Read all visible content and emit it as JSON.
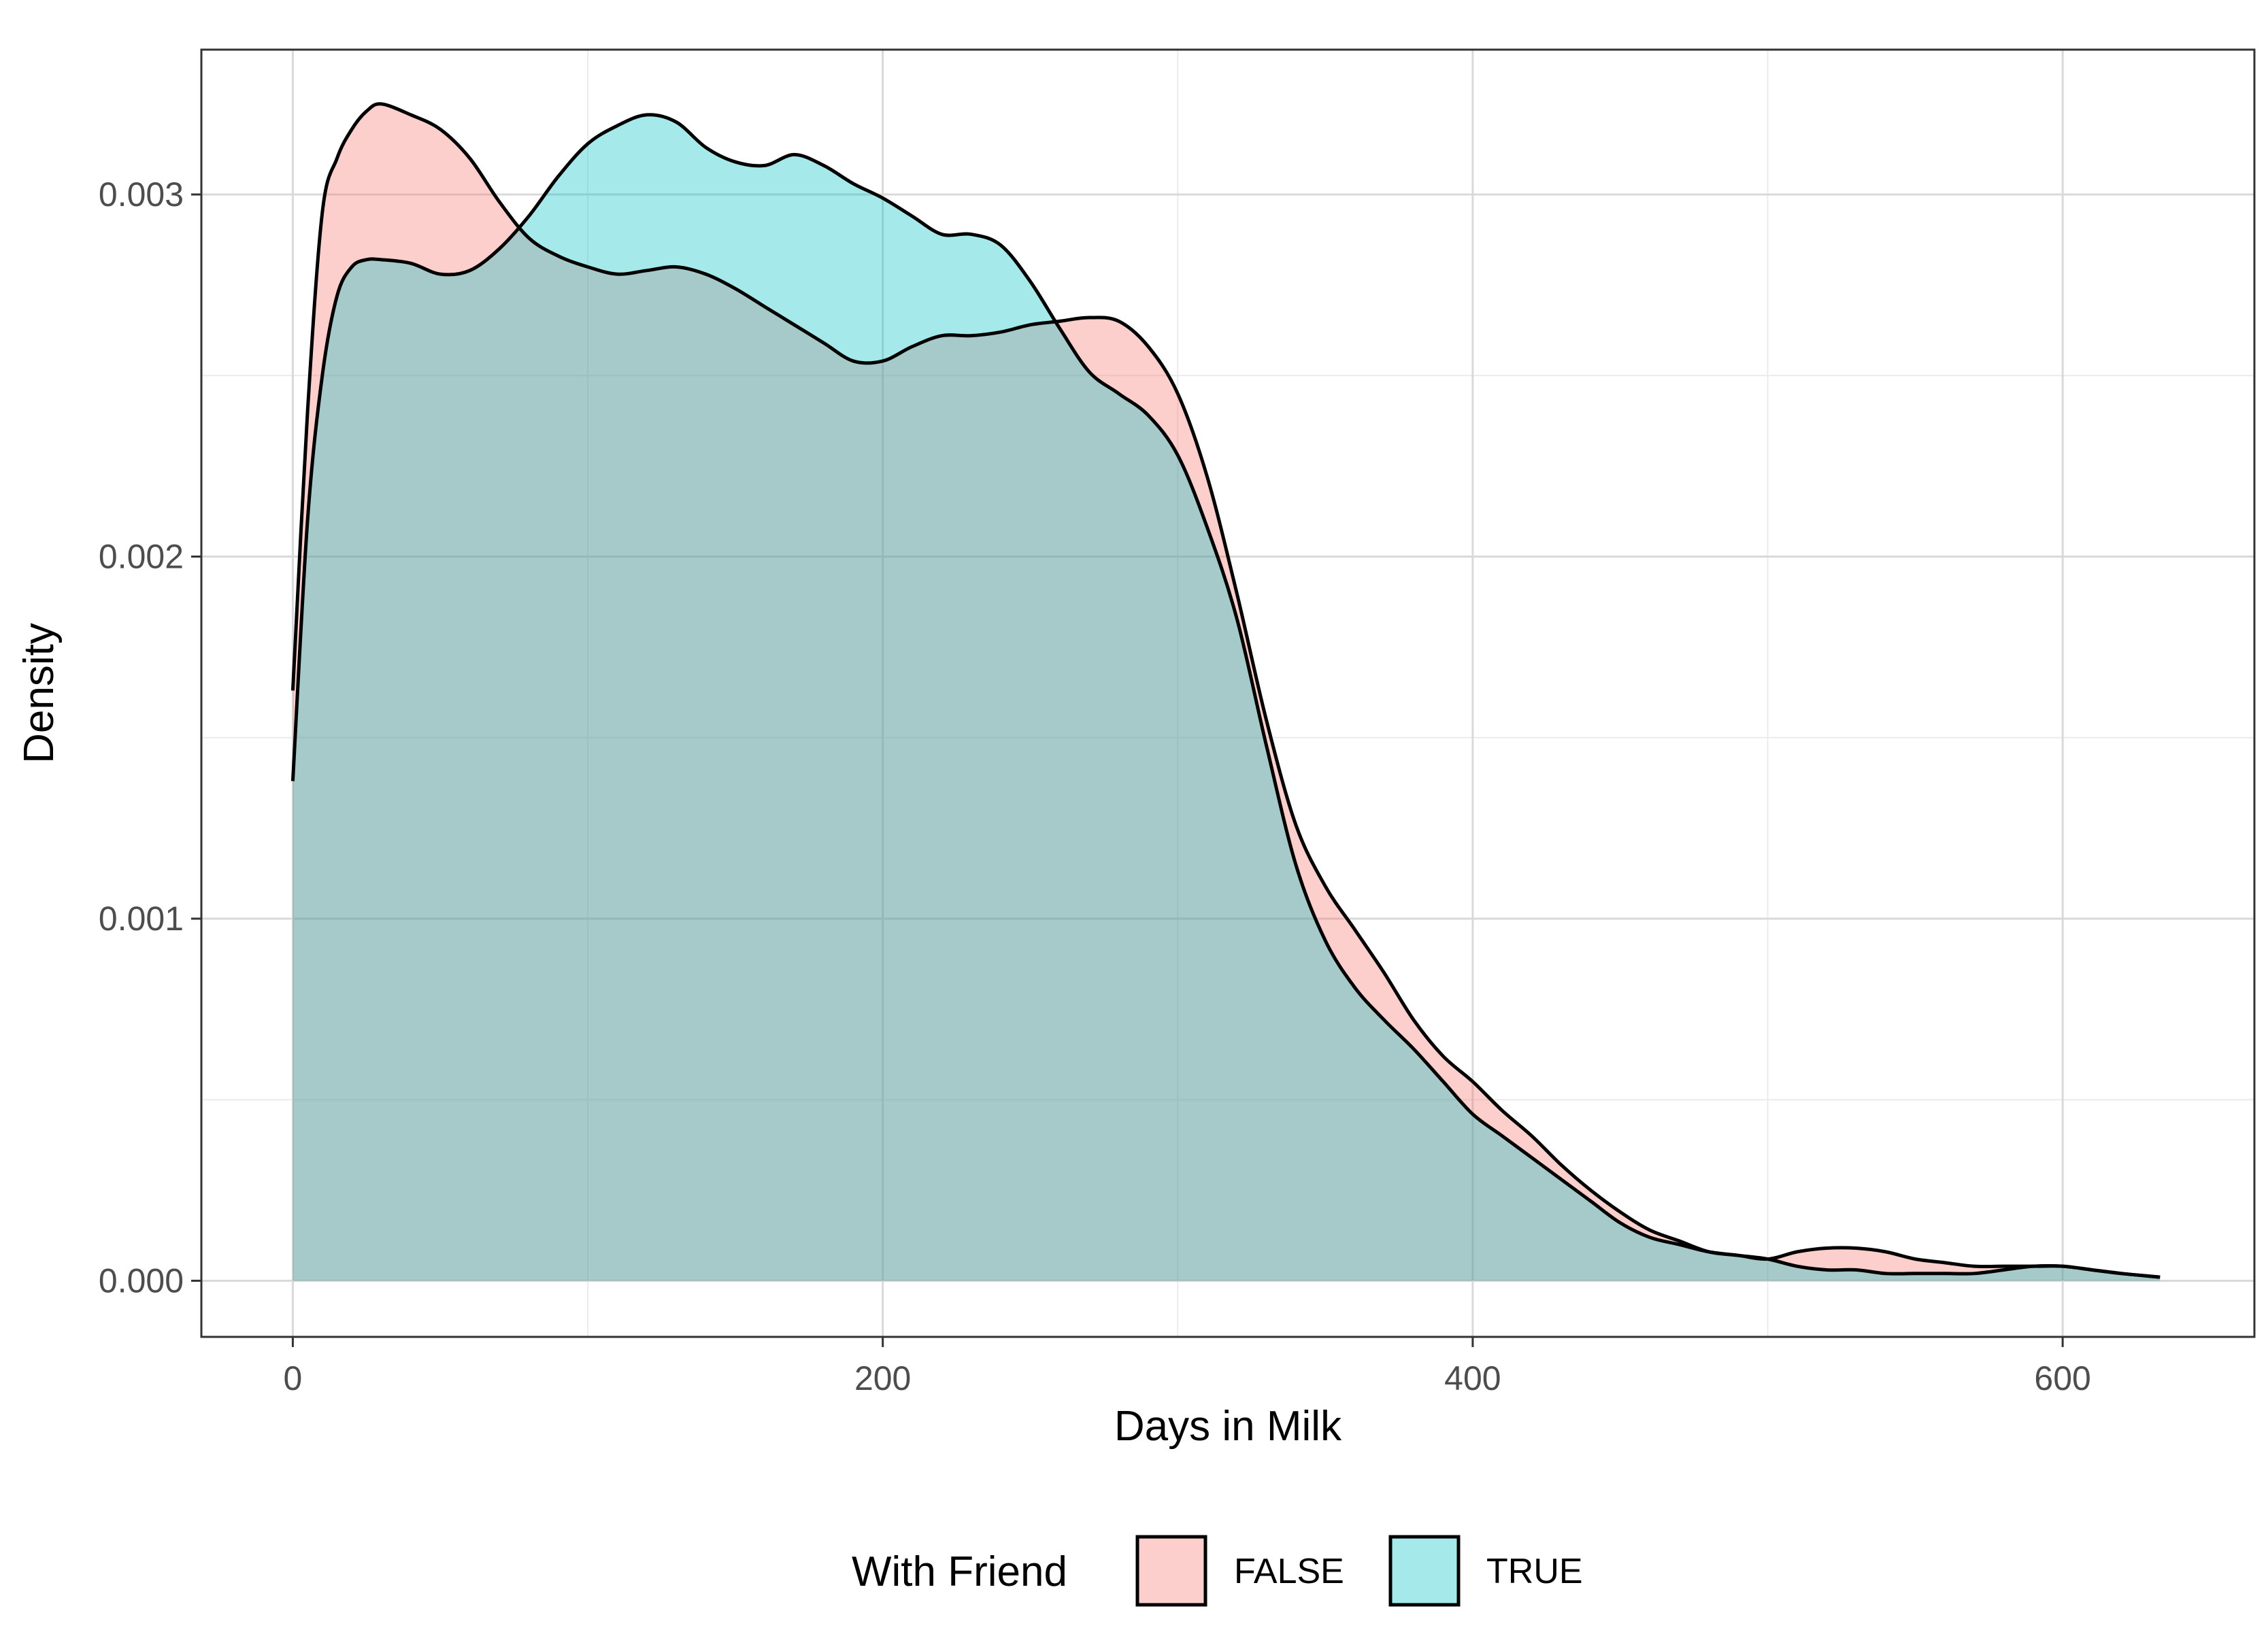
{
  "chart_data": {
    "type": "area",
    "subtype": "density",
    "title": "",
    "xlabel": "Days in Milk",
    "ylabel": "Density",
    "xlim": [
      -31,
      665
    ],
    "ylim": [
      -0.000155,
      0.0034
    ],
    "x_ticks": [
      0,
      200,
      400,
      600
    ],
    "x_tick_labels": [
      "0",
      "200",
      "400",
      "600"
    ],
    "y_ticks": [
      0,
      0.001,
      0.002,
      0.003
    ],
    "y_tick_labels": [
      "0.000",
      "0.001",
      "0.002",
      "0.003"
    ],
    "x_minor_ticks": [
      100,
      300,
      500
    ],
    "y_minor_ticks": [
      0.0005,
      0.0015,
      0.0025
    ],
    "grid": true,
    "legend": {
      "title": "With Friend",
      "position": "bottom"
    },
    "series": [
      {
        "name": "FALSE",
        "color": "#F8766D",
        "fill_alpha": 0.35,
        "x": [
          0,
          5,
          10,
          15,
          20,
          25,
          30,
          40,
          50,
          60,
          70,
          80,
          90,
          100,
          110,
          120,
          130,
          140,
          150,
          160,
          170,
          180,
          190,
          200,
          210,
          220,
          230,
          240,
          250,
          260,
          270,
          280,
          290,
          300,
          310,
          320,
          330,
          340,
          350,
          360,
          370,
          380,
          390,
          400,
          410,
          420,
          430,
          440,
          450,
          460,
          470,
          480,
          490,
          500,
          510,
          520,
          530,
          540,
          550,
          560,
          570,
          580,
          590,
          600,
          610,
          620,
          633
        ],
        "y": [
          0.00163,
          0.0024,
          0.00295,
          0.0031,
          0.00318,
          0.00323,
          0.00325,
          0.00322,
          0.00318,
          0.0031,
          0.00298,
          0.00288,
          0.00283,
          0.0028,
          0.00278,
          0.00279,
          0.0028,
          0.00278,
          0.00274,
          0.00269,
          0.00264,
          0.00259,
          0.00254,
          0.00254,
          0.00258,
          0.00261,
          0.00261,
          0.00262,
          0.00264,
          0.00265,
          0.00266,
          0.00265,
          0.00258,
          0.00245,
          0.00222,
          0.0019,
          0.00155,
          0.00126,
          0.00109,
          0.00097,
          0.00085,
          0.00072,
          0.00062,
          0.00055,
          0.00047,
          0.0004,
          0.00032,
          0.00025,
          0.00019,
          0.00014,
          0.00011,
          8e-05,
          7e-05,
          6e-05,
          8e-05,
          9e-05,
          9e-05,
          8e-05,
          6e-05,
          5e-05,
          4e-05,
          4e-05,
          4e-05,
          4e-05,
          3e-05,
          2e-05,
          1e-05
        ]
      },
      {
        "name": "TRUE",
        "color": "#00BFC4",
        "fill_alpha": 0.35,
        "x": [
          0,
          5,
          10,
          15,
          20,
          25,
          30,
          40,
          50,
          60,
          70,
          80,
          90,
          100,
          110,
          120,
          130,
          140,
          150,
          160,
          170,
          180,
          190,
          200,
          210,
          220,
          230,
          240,
          250,
          260,
          270,
          280,
          290,
          300,
          310,
          320,
          330,
          340,
          350,
          360,
          370,
          380,
          390,
          400,
          410,
          420,
          430,
          440,
          450,
          460,
          470,
          480,
          490,
          500,
          510,
          520,
          530,
          540,
          550,
          560,
          570,
          580,
          590,
          600,
          610,
          620,
          633
        ],
        "y": [
          0.00138,
          0.0021,
          0.0025,
          0.00272,
          0.0028,
          0.00282,
          0.00282,
          0.00281,
          0.00278,
          0.00279,
          0.00285,
          0.00294,
          0.00305,
          0.00314,
          0.00319,
          0.00322,
          0.0032,
          0.00313,
          0.00309,
          0.00308,
          0.00311,
          0.00308,
          0.00303,
          0.00299,
          0.00294,
          0.00289,
          0.00289,
          0.00286,
          0.00276,
          0.00263,
          0.00251,
          0.00245,
          0.00239,
          0.00228,
          0.00208,
          0.00183,
          0.00148,
          0.00115,
          0.00094,
          0.00081,
          0.00072,
          0.00064,
          0.00055,
          0.00046,
          0.0004,
          0.00034,
          0.00028,
          0.00022,
          0.00016,
          0.00012,
          0.0001,
          8e-05,
          7e-05,
          6e-05,
          4e-05,
          3e-05,
          3e-05,
          2e-05,
          2e-05,
          2e-05,
          2e-05,
          3e-05,
          4e-05,
          4e-05,
          3e-05,
          2e-05,
          1e-05
        ]
      }
    ]
  }
}
